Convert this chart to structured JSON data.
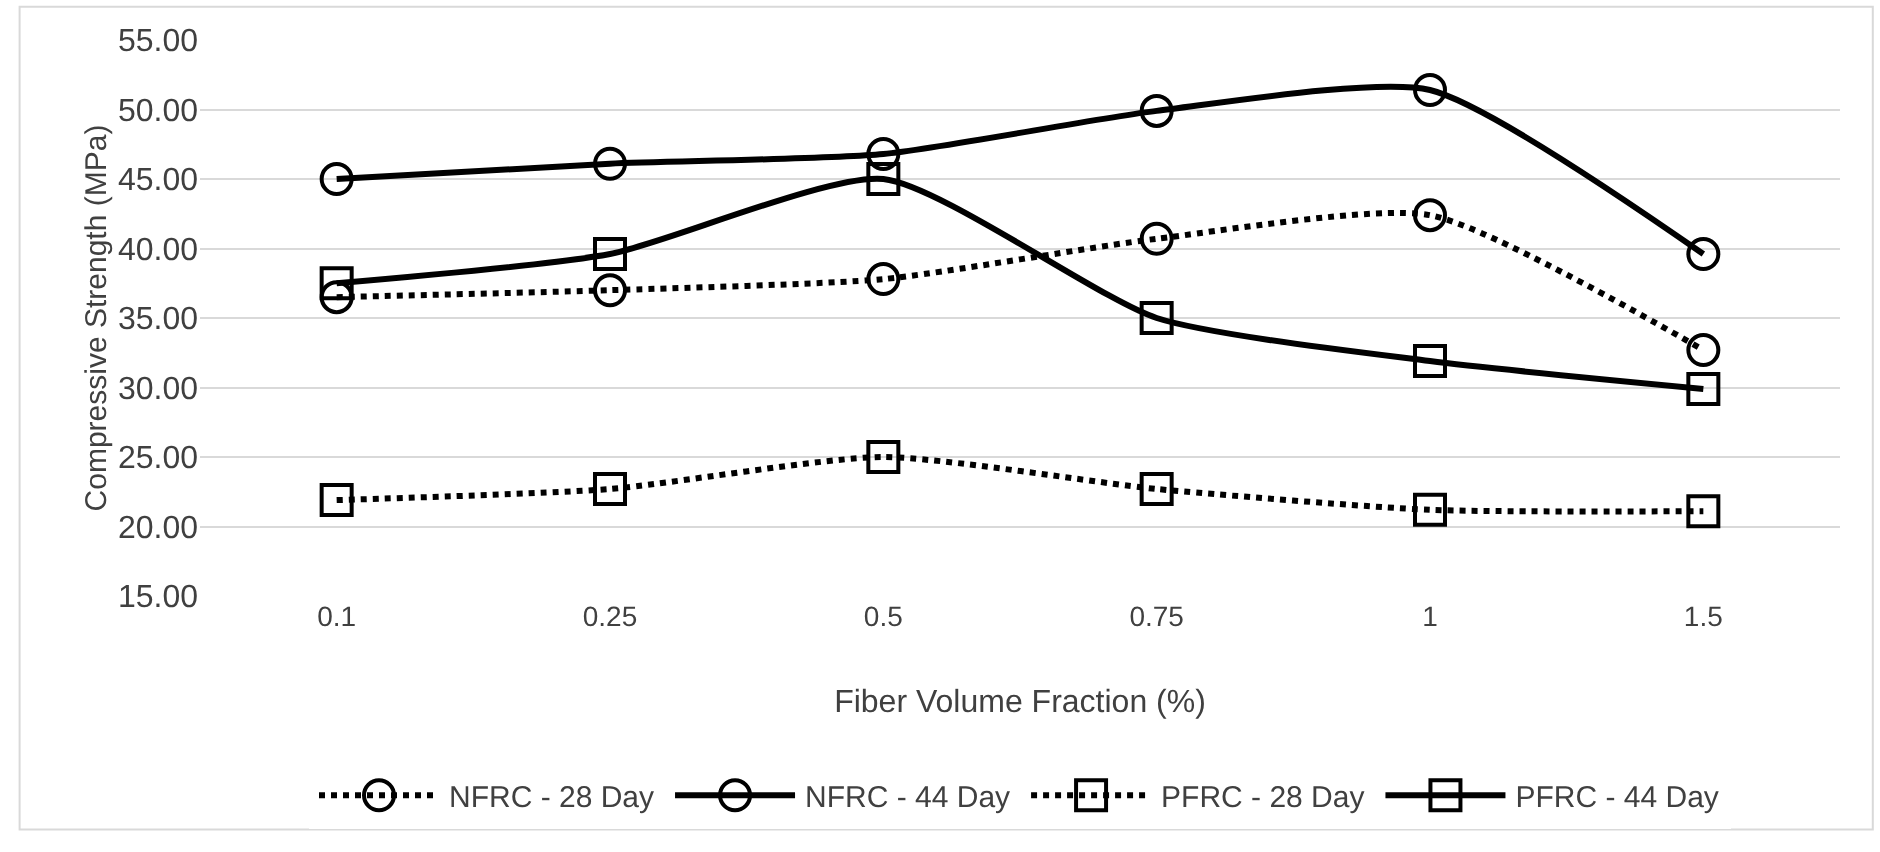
{
  "chart_data": {
    "type": "line",
    "xlabel": "Fiber Volume Fraction (%)",
    "ylabel": "Compressive Strength (MPa)",
    "categories": [
      "0.1",
      "0.25",
      "0.5",
      "0.75",
      "1",
      "1.5"
    ],
    "ylim": [
      15,
      55
    ],
    "yticks": [
      {
        "value": 15,
        "label": "15.00"
      },
      {
        "value": 20,
        "label": "20.00"
      },
      {
        "value": 25,
        "label": "25.00"
      },
      {
        "value": 30,
        "label": "30.00"
      },
      {
        "value": 35,
        "label": "35.00"
      },
      {
        "value": 40,
        "label": "40.00"
      },
      {
        "value": 45,
        "label": "45.00"
      },
      {
        "value": 50,
        "label": "50.00"
      },
      {
        "value": 55,
        "label": "55.00"
      }
    ],
    "grid": "y",
    "legend": "bottom",
    "series": [
      {
        "name": "NFRC - 28 Day",
        "color": "#000000",
        "marker": "circle",
        "line_style": "dotted",
        "values": [
          36.5,
          37.0,
          37.8,
          40.7,
          42.4,
          32.7
        ]
      },
      {
        "name": "NFRC - 44 Day",
        "color": "#000000",
        "marker": "circle",
        "line_style": "solid",
        "values": [
          45.0,
          46.1,
          46.8,
          49.9,
          51.4,
          39.6
        ]
      },
      {
        "name": "PFRC - 28 Day",
        "color": "#000000",
        "marker": "square",
        "line_style": "dotted",
        "values": [
          21.9,
          22.7,
          25.0,
          22.7,
          21.2,
          21.1
        ]
      },
      {
        "name": "PFRC - 44 Day",
        "color": "#000000",
        "marker": "square",
        "line_style": "solid",
        "values": [
          37.5,
          39.6,
          45.0,
          35.0,
          31.9,
          29.9
        ]
      }
    ]
  }
}
